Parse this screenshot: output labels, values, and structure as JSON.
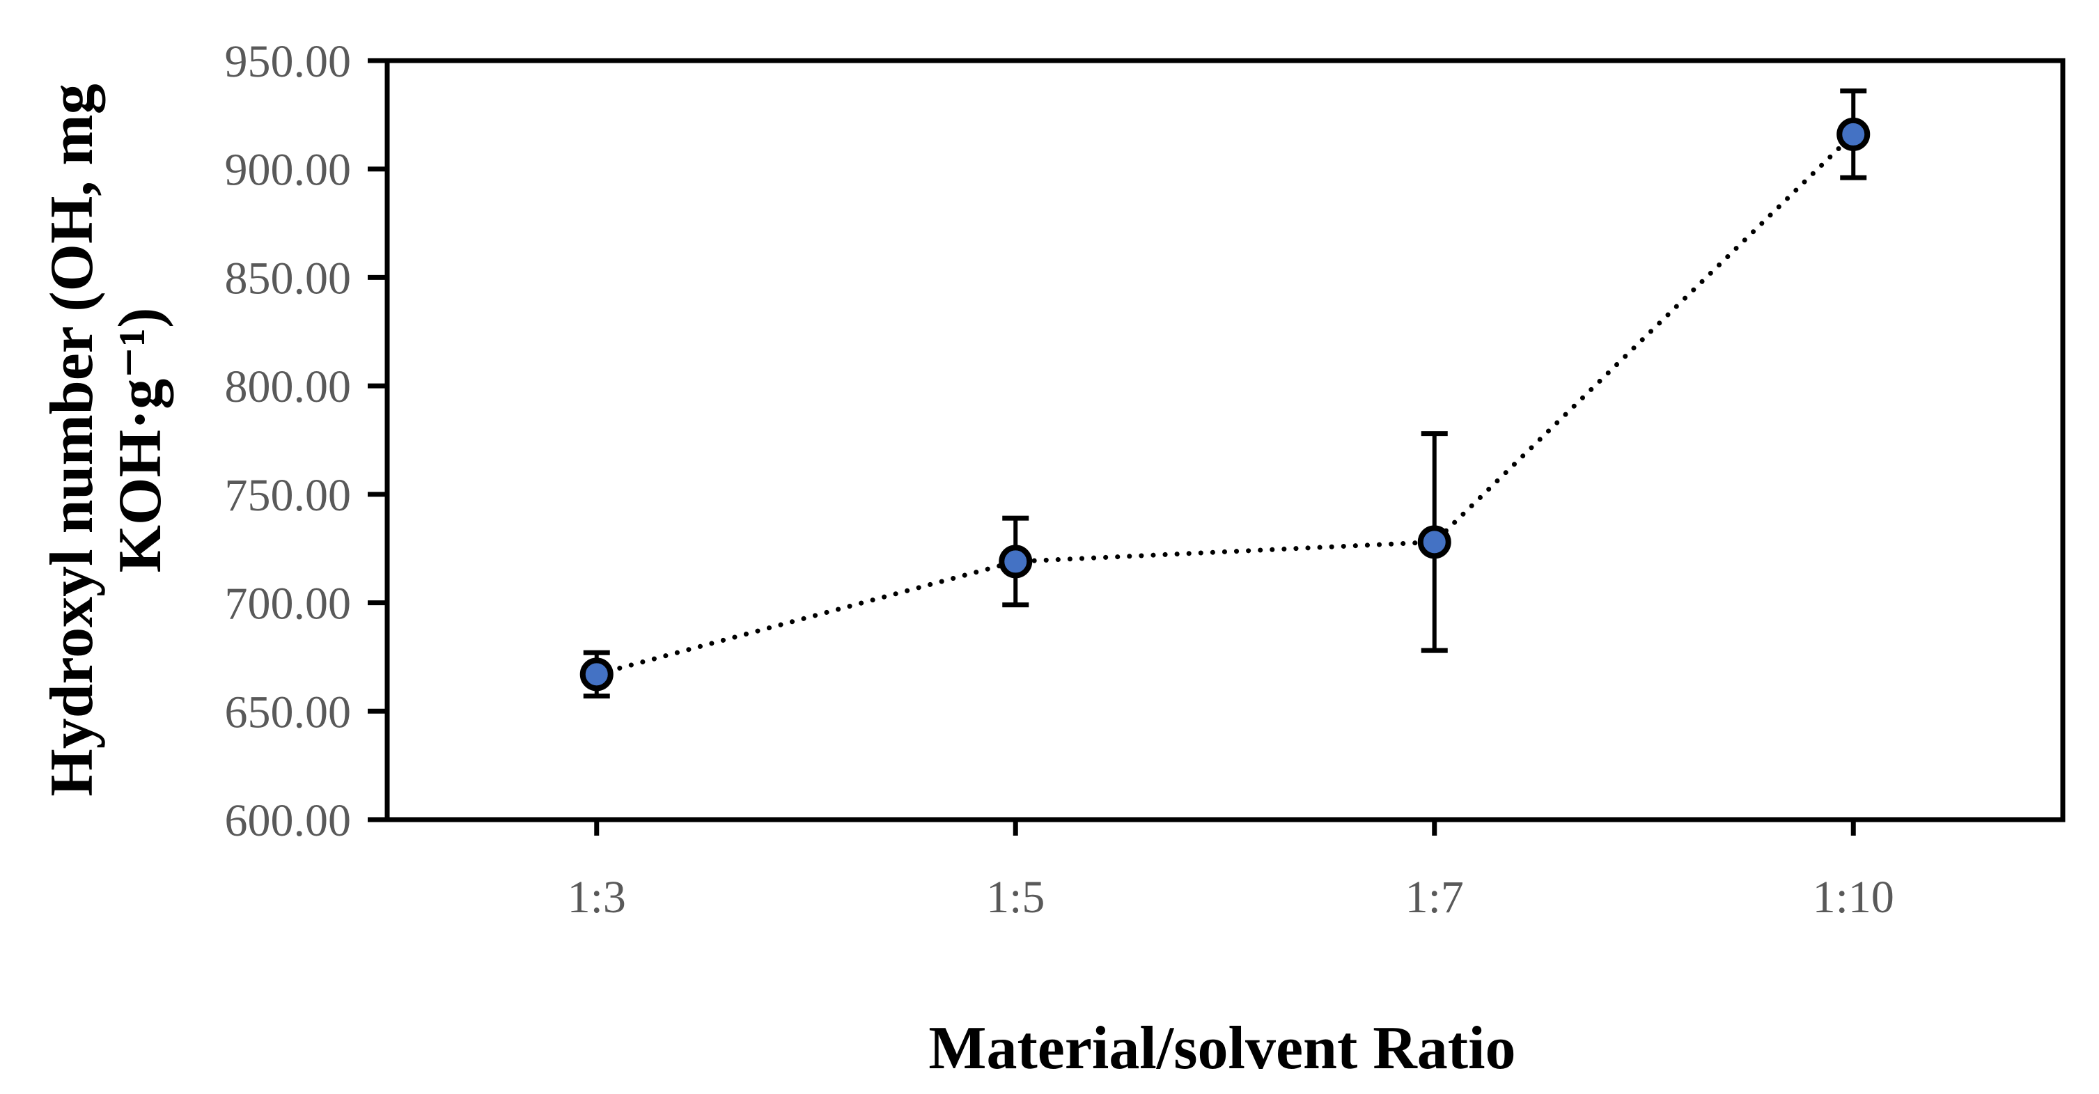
{
  "figure": {
    "background": "#ffffff"
  },
  "chart_data": {
    "type": "scatter",
    "title": "",
    "xlabel": "Material/solvent Ratio",
    "ylabel": "Hydroxyl number (OH, mg KOH·g⁻¹)",
    "ylabel_lines": [
      "Hydroxyl number (OH, mg",
      "KOH·g⁻¹)"
    ],
    "categories": [
      "1:3",
      "1:5",
      "1:7",
      "1:10"
    ],
    "series": [
      {
        "name": "Hydroxyl number",
        "values": [
          667,
          719,
          728,
          916
        ],
        "error_plus": [
          10,
          20,
          50,
          20
        ],
        "error_minus": [
          10,
          20,
          50,
          20
        ]
      }
    ],
    "ylim": [
      600,
      950
    ],
    "ytick_step": 50,
    "ytick_labels": [
      "600.00",
      "650.00",
      "700.00",
      "750.00",
      "800.00",
      "850.00",
      "900.00",
      "950.00"
    ],
    "grid": false,
    "legend": null,
    "line_style": "dotted",
    "marker_shape": "circle",
    "colors": {
      "marker_fill": "#4472C4",
      "marker_stroke": "#000000",
      "line": "#000000",
      "axis": "#000000",
      "tick_label": "#595959",
      "axis_title": "#000000"
    }
  }
}
